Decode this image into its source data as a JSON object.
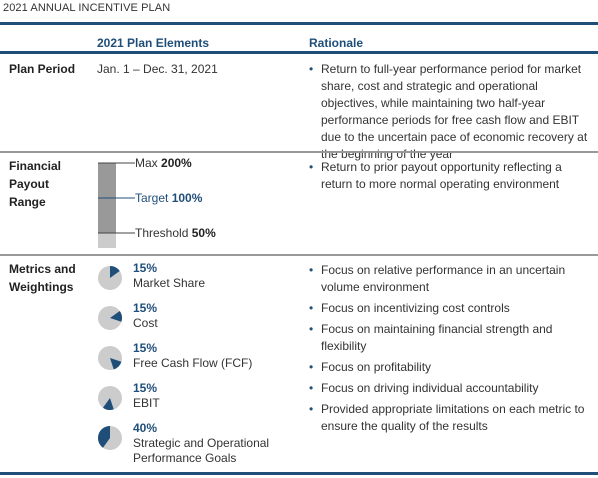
{
  "title": "2021 ANNUAL INCENTIVE PLAN",
  "columns": {
    "elements": "2021 Plan Elements",
    "rationale": "Rationale"
  },
  "rows": {
    "plan_period": {
      "label": "Plan Period",
      "value": "Jan. 1 – Dec. 31, 2021",
      "rationale": [
        "Return to full-year performance period for market share, cost and strategic and operational objectives, while maintaining two half-year performance periods for free cash flow and EBIT due to the uncertain pace of economic recovery at the beginning of the year"
      ]
    },
    "payout": {
      "label_lines": [
        "Financial",
        "Payout",
        "Range"
      ],
      "levels": [
        {
          "name": "Max",
          "value": "200%",
          "fraction": 2.0
        },
        {
          "name": "Target",
          "value": "100%",
          "fraction": 1.0
        },
        {
          "name": "Threshold",
          "value": "50%",
          "fraction": 0.5
        }
      ],
      "rationale": [
        "Return to prior payout opportunity reflecting a return to more normal operating environment"
      ]
    },
    "metrics": {
      "label_lines": [
        "Metrics and",
        "Weightings"
      ],
      "items": [
        {
          "pct": "15%",
          "name_lines": [
            "Market Share"
          ],
          "share": 0.15,
          "offset": 0.0
        },
        {
          "pct": "15%",
          "name_lines": [
            "Cost"
          ],
          "share": 0.15,
          "offset": 0.15
        },
        {
          "pct": "15%",
          "name_lines": [
            "Free Cash Flow (FCF)"
          ],
          "share": 0.15,
          "offset": 0.3
        },
        {
          "pct": "15%",
          "name_lines": [
            "EBIT"
          ],
          "share": 0.15,
          "offset": 0.45
        },
        {
          "pct": "40%",
          "name_lines": [
            "Strategic and Operational",
            "Performance Goals"
          ],
          "share": 0.4,
          "offset": 0.6
        }
      ],
      "rationale": [
        "Focus on relative performance in an uncertain volume environment",
        "Focus on incentivizing cost controls",
        "Focus on maintaining financial strength and flexibility",
        "Focus on profitability",
        "Focus on driving individual accountability",
        "Provided appropriate limitations on each metric to ensure the quality of the results"
      ]
    }
  },
  "colors": {
    "accent": "#1f4e79",
    "pie_bg": "#cccccc",
    "bar_dark": "#999999",
    "bar_light": "#cccccc"
  }
}
